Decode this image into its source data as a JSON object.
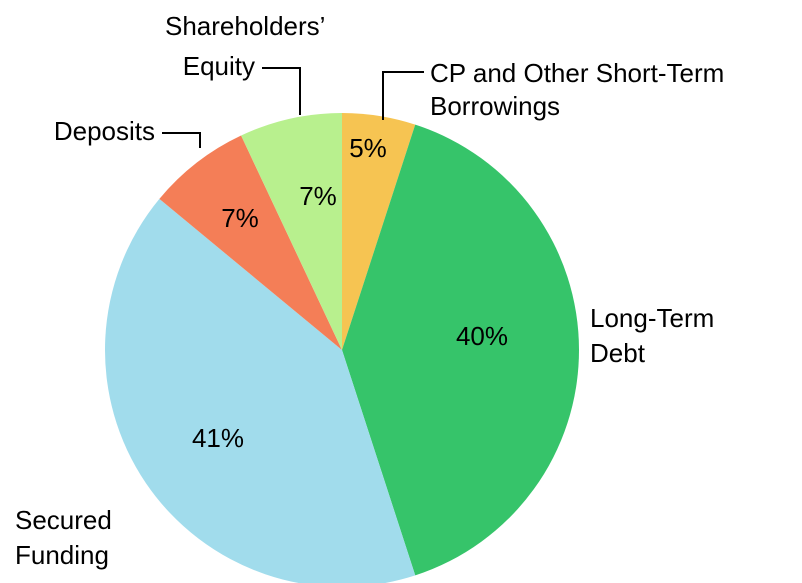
{
  "chart_data": {
    "type": "pie",
    "categories": [
      [
        "CP and Other Short-Term",
        "Borrowings"
      ],
      [
        "Long-Term",
        "Debt"
      ],
      [
        "Secured",
        "Funding"
      ],
      [
        "Deposits"
      ],
      [
        "Shareholders’",
        "Equity"
      ]
    ],
    "values": [
      5,
      40,
      41,
      7,
      7
    ],
    "value_labels": [
      "5%",
      "40%",
      "41%",
      "7%",
      "7%"
    ],
    "colors": [
      "#f6c452",
      "#36c46a",
      "#a1dcec",
      "#f47e57",
      "#b8f08e"
    ]
  }
}
